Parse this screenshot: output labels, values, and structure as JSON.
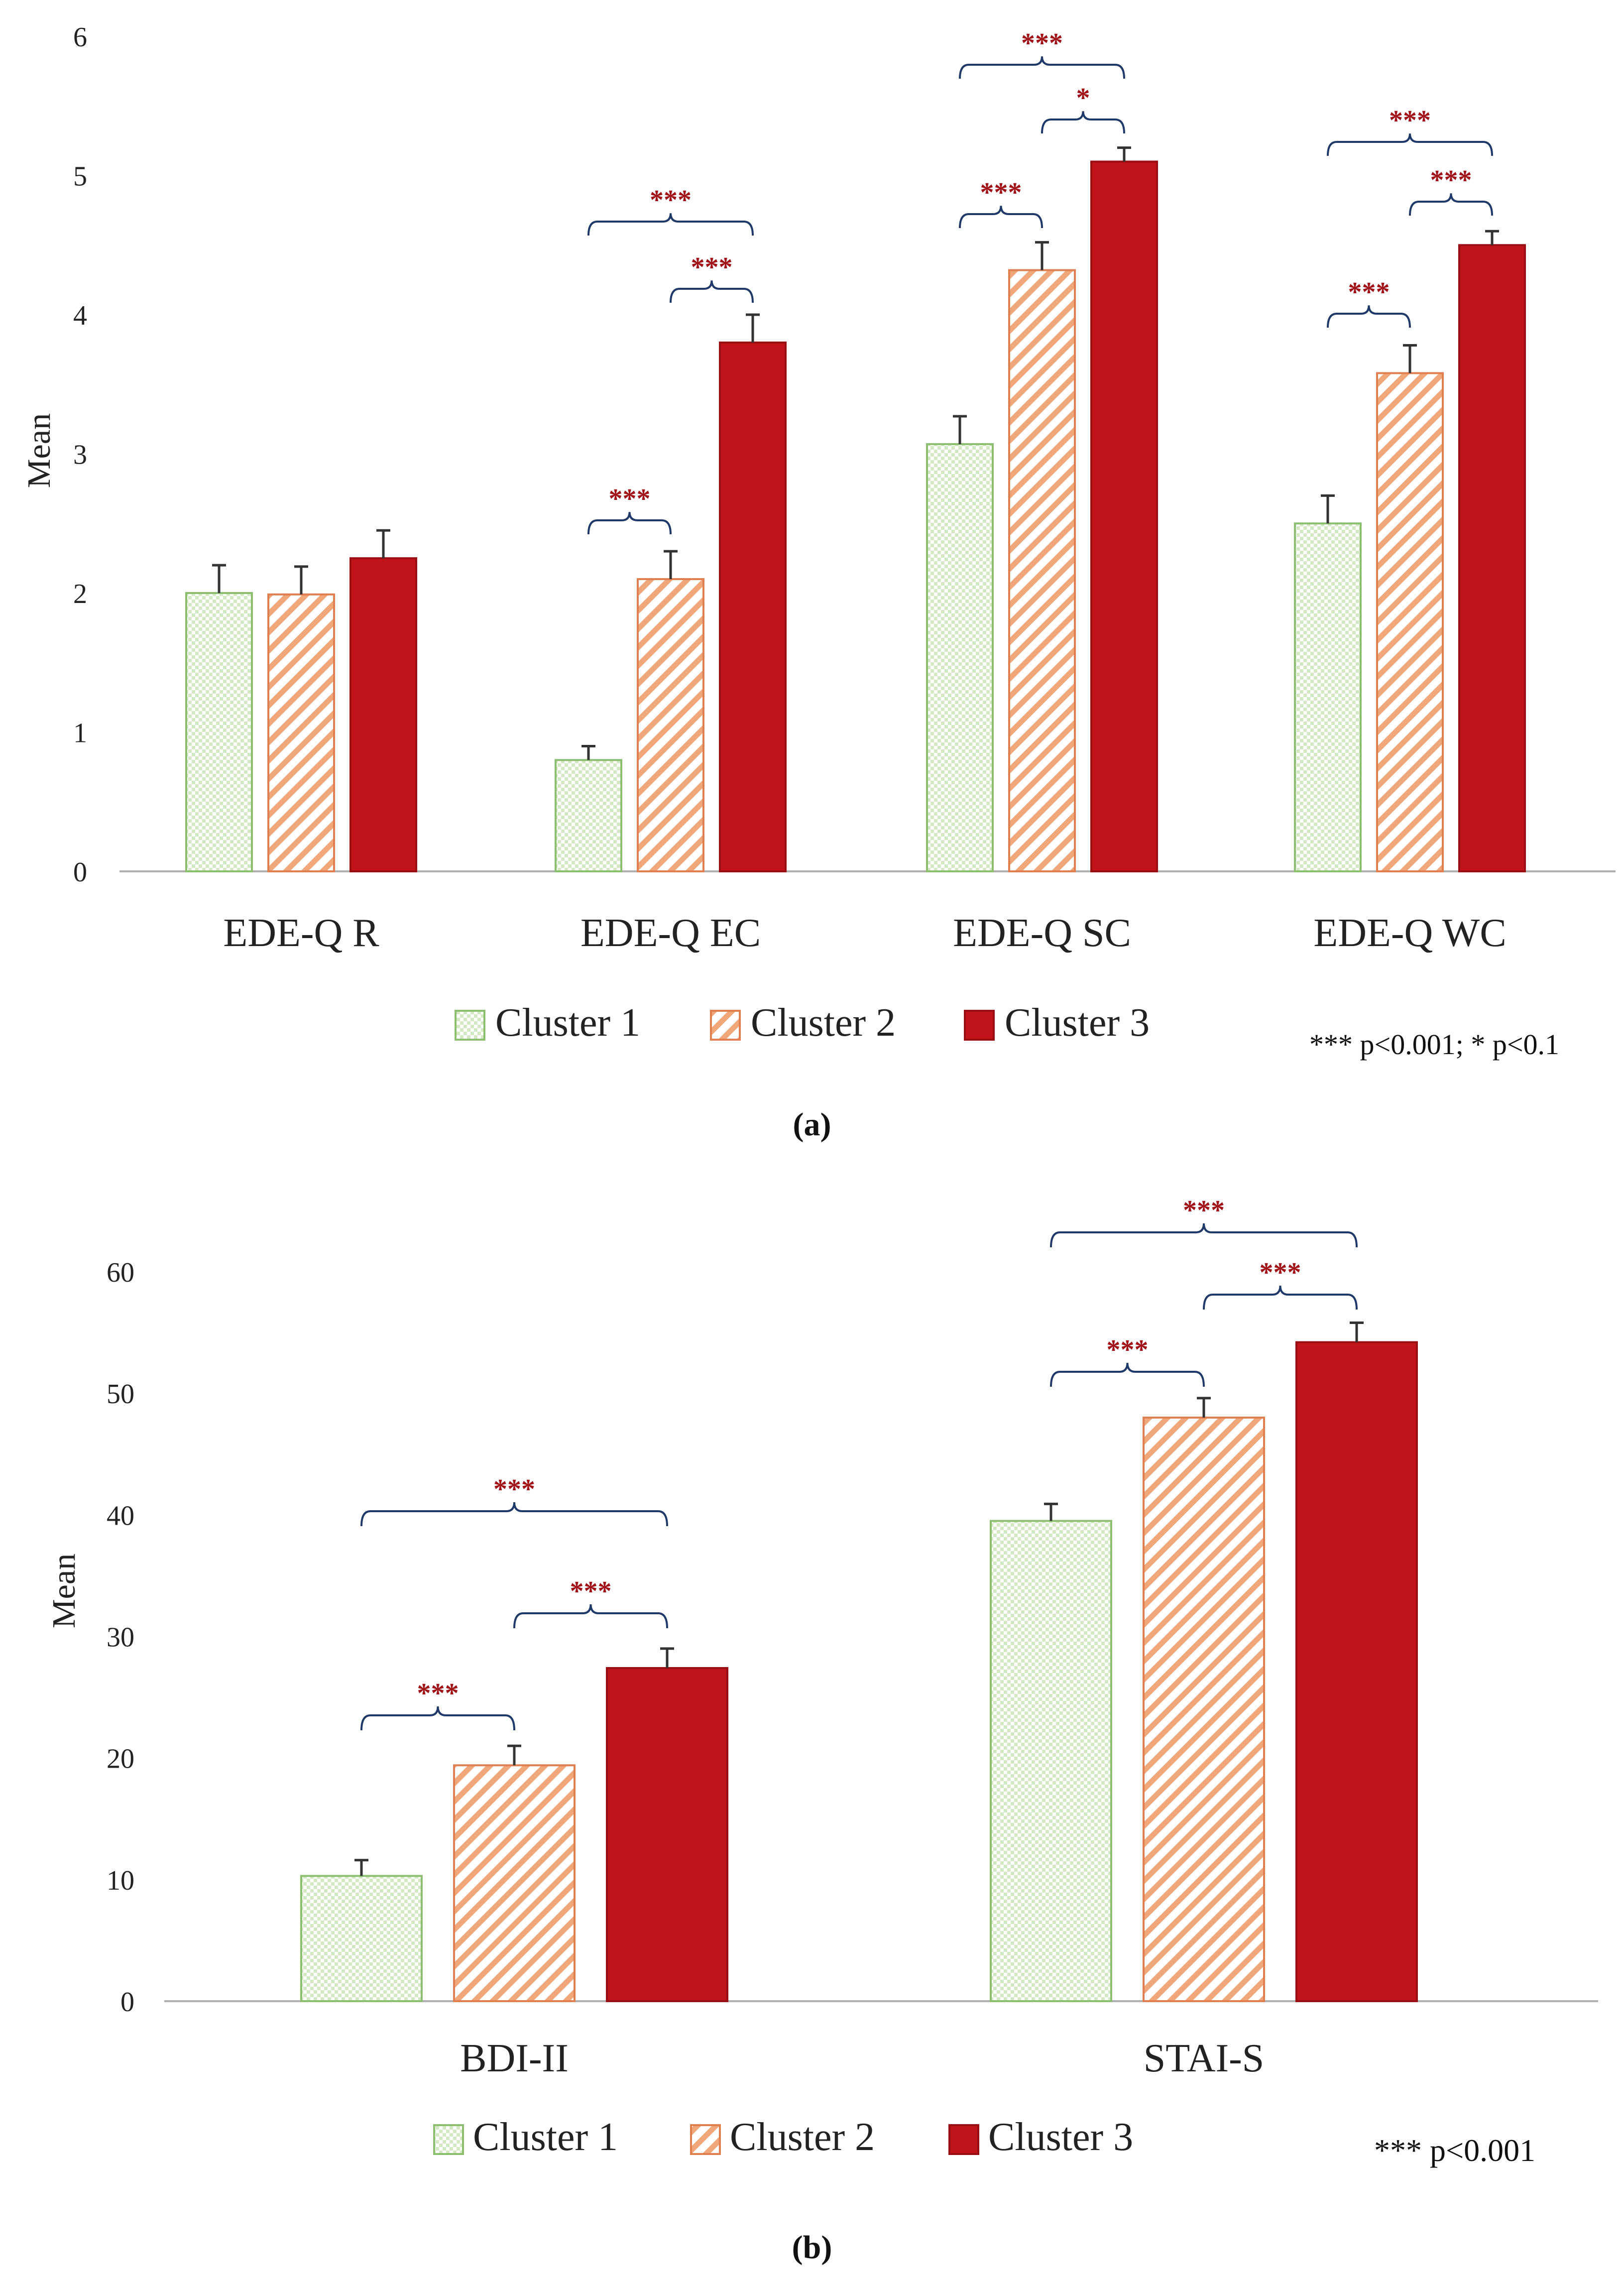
{
  "colors": {
    "cluster1_fill": "#d4e8c4",
    "cluster1_check": "#ffffff",
    "cluster1_stroke": "#8cbf6f",
    "cluster2_stripe": "#f0a87a",
    "cluster2_stroke": "#e08050",
    "cluster3_fill": "#c0141a",
    "cluster3_stroke": "#9a0f14",
    "axis": "#b0b0b0",
    "text": "#222222",
    "bracket": "#1f3a68",
    "sig": "#a01218"
  },
  "icons": {
    "cluster1": "checker-swatch-icon",
    "cluster2": "diagonal-stripe-swatch-icon",
    "cluster3": "solid-red-swatch-icon"
  },
  "chart_data": [
    {
      "type": "bar",
      "panel": "a",
      "caption": "(a)",
      "ylabel": "Mean",
      "ylim": [
        0,
        6
      ],
      "yticks": [
        "0",
        "1",
        "2",
        "3",
        "4",
        "5",
        "6"
      ],
      "categories": [
        "EDE-Q R",
        "EDE-Q EC",
        "EDE-Q SC",
        "EDE-Q WC"
      ],
      "series": [
        {
          "name": "Cluster 1",
          "values": [
            2.0,
            0.8,
            3.07,
            2.5
          ],
          "errors": [
            0.2,
            0.1,
            0.2,
            0.2
          ]
        },
        {
          "name": "Cluster 2",
          "values": [
            1.99,
            2.1,
            4.32,
            3.58
          ],
          "errors": [
            0.2,
            0.2,
            0.2,
            0.2
          ]
        },
        {
          "name": "Cluster 3",
          "values": [
            2.25,
            3.8,
            5.1,
            4.5
          ],
          "errors": [
            0.2,
            0.2,
            0.1,
            0.1
          ]
        }
      ],
      "significance": [
        {
          "category": 1,
          "from": 1,
          "to": 2,
          "label": "***"
        },
        {
          "category": 1,
          "from": 0,
          "to": 1,
          "label": "***"
        },
        {
          "category": 1,
          "from": 0,
          "to": 2,
          "label": "***"
        },
        {
          "category": 2,
          "from": 0,
          "to": 1,
          "label": "***"
        },
        {
          "category": 2,
          "from": 1,
          "to": 2,
          "label": "*"
        },
        {
          "category": 2,
          "from": 0,
          "to": 2,
          "label": "***"
        },
        {
          "category": 3,
          "from": 0,
          "to": 1,
          "label": "***"
        },
        {
          "category": 3,
          "from": 1,
          "to": 2,
          "label": "***"
        },
        {
          "category": 3,
          "from": 0,
          "to": 2,
          "label": "***"
        }
      ],
      "legend": [
        "Cluster 1",
        "Cluster 2",
        "Cluster 3"
      ],
      "note": "*** p<0.001; * p<0.1",
      "grid": false
    },
    {
      "type": "bar",
      "panel": "b",
      "caption": "(b)",
      "ylabel": "Mean",
      "ylim": [
        0,
        60
      ],
      "yticks": [
        "0",
        "10",
        "20",
        "30",
        "40",
        "50",
        "60"
      ],
      "categories": [
        "BDI-II",
        "STAI-S"
      ],
      "series": [
        {
          "name": "Cluster 1",
          "values": [
            10.3,
            39.5
          ],
          "errors": [
            1.3,
            1.4
          ]
        },
        {
          "name": "Cluster 2",
          "values": [
            19.4,
            48.0
          ],
          "errors": [
            1.6,
            1.6
          ]
        },
        {
          "name": "Cluster 3",
          "values": [
            27.4,
            54.2
          ],
          "errors": [
            1.6,
            1.6
          ]
        }
      ],
      "significance": [
        {
          "category": 0,
          "from": 0,
          "to": 1,
          "label": "***"
        },
        {
          "category": 0,
          "from": 1,
          "to": 2,
          "label": "***"
        },
        {
          "category": 0,
          "from": 0,
          "to": 2,
          "label": "***"
        },
        {
          "category": 1,
          "from": 0,
          "to": 1,
          "label": "***"
        },
        {
          "category": 1,
          "from": 1,
          "to": 2,
          "label": "***"
        },
        {
          "category": 1,
          "from": 0,
          "to": 2,
          "label": "***"
        }
      ],
      "legend": [
        "Cluster 1",
        "Cluster 2",
        "Cluster 3"
      ],
      "note": "*** p<0.001",
      "grid": false
    }
  ]
}
